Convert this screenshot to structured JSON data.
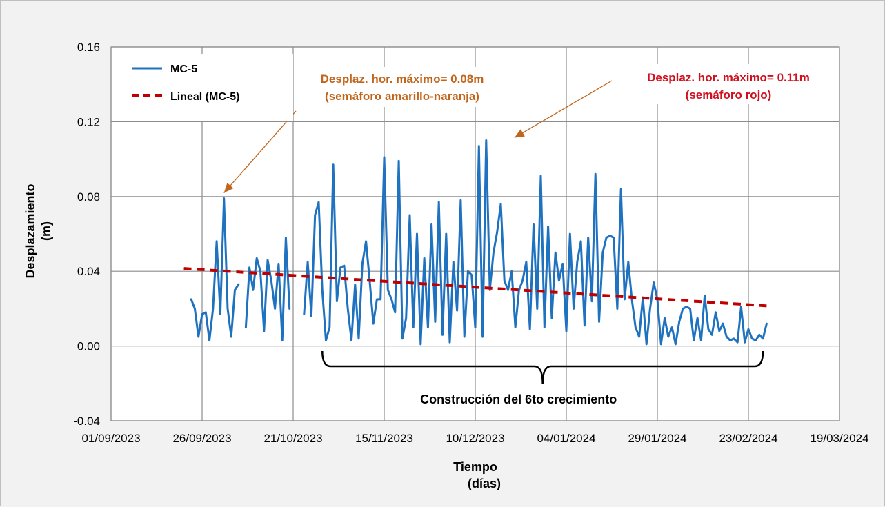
{
  "chart_data": {
    "type": "line",
    "xlabel": "Tiempo",
    "xlabel_sub": "(días)",
    "ylabel": "Desplazamiento",
    "ylabel_sub": "(m)",
    "ylim": [
      -0.04,
      0.16
    ],
    "yticks": [
      -0.04,
      0.0,
      0.04,
      0.08,
      0.12,
      0.16
    ],
    "ytick_labels": [
      "-0.04",
      "0.00",
      "0.04",
      "0.08",
      "0.12",
      "0.16"
    ],
    "xlim_days": [
      0,
      200
    ],
    "xticks_days": [
      0,
      25,
      50,
      75,
      100,
      125,
      150,
      175,
      200
    ],
    "xtick_labels": [
      "01/09/2023",
      "26/09/2023",
      "21/10/2023",
      "15/11/2023",
      "10/12/2023",
      "04/01/2024",
      "29/01/2024",
      "23/02/2024",
      "19/03/2024"
    ],
    "legend": [
      {
        "name": "MC-5",
        "style": "solid",
        "color": "#1f72c0"
      },
      {
        "name": "Lineal (MC-5)",
        "style": "dashed",
        "color": "#c00000"
      }
    ],
    "series": [
      {
        "name": "MC-5",
        "color": "#1f72c0",
        "segments": [
          {
            "x": [
              22,
              23,
              24,
              25,
              26,
              27,
              28,
              29,
              30,
              31,
              32,
              33,
              34,
              35
            ],
            "y": [
              0.025,
              0.02,
              0.005,
              0.017,
              0.018,
              0.003,
              0.02,
              0.056,
              0.017,
              0.079,
              0.02,
              0.005,
              0.03,
              0.033
            ]
          },
          {
            "x": [
              37,
              38,
              39,
              40,
              41,
              42,
              43,
              44,
              45,
              46,
              47,
              48,
              49
            ],
            "y": [
              0.01,
              0.042,
              0.03,
              0.047,
              0.04,
              0.008,
              0.046,
              0.035,
              0.02,
              0.044,
              0.003,
              0.058,
              0.02
            ]
          },
          {
            "x": [
              53,
              54,
              55,
              56,
              57,
              58,
              59,
              60,
              61,
              62,
              63,
              64,
              65,
              66,
              67,
              68,
              69,
              70,
              71,
              72,
              73,
              74,
              75,
              76,
              77,
              78,
              79,
              80,
              81,
              82,
              83,
              84,
              85,
              86,
              87,
              88,
              89,
              90,
              91,
              92,
              93,
              94,
              95,
              96,
              97,
              98,
              99,
              100,
              101,
              102,
              103,
              104,
              105,
              106,
              107,
              108,
              109,
              110,
              111,
              112,
              113,
              114,
              115,
              116,
              117,
              118,
              119,
              120,
              121,
              122,
              123,
              124,
              125,
              126,
              127,
              128,
              129,
              130,
              131,
              132,
              133,
              134,
              135,
              136,
              137,
              138,
              139,
              140,
              141,
              142,
              143,
              144,
              145,
              146,
              147,
              148,
              149,
              150,
              151,
              152,
              153,
              154,
              155,
              156,
              157,
              158,
              159,
              160,
              161,
              162,
              163,
              164,
              165,
              166,
              167,
              168,
              169,
              170,
              171,
              172,
              173,
              174,
              175,
              176,
              177,
              178,
              179,
              180
            ],
            "y": [
              0.017,
              0.045,
              0.016,
              0.07,
              0.077,
              0.03,
              0.003,
              0.01,
              0.097,
              0.024,
              0.042,
              0.043,
              0.02,
              0.003,
              0.033,
              0.004,
              0.044,
              0.056,
              0.035,
              0.012,
              0.025,
              0.025,
              0.101,
              0.03,
              0.025,
              0.018,
              0.099,
              0.004,
              0.015,
              0.07,
              0.01,
              0.06,
              0.001,
              0.047,
              0.01,
              0.065,
              0.013,
              0.077,
              0.006,
              0.06,
              0.002,
              0.045,
              0.019,
              0.078,
              0.005,
              0.04,
              0.038,
              0.01,
              0.107,
              0.005,
              0.11,
              0.03,
              0.05,
              0.061,
              0.076,
              0.035,
              0.03,
              0.04,
              0.01,
              0.03,
              0.035,
              0.045,
              0.009,
              0.065,
              0.02,
              0.091,
              0.01,
              0.064,
              0.015,
              0.05,
              0.035,
              0.044,
              0.008,
              0.06,
              0.02,
              0.045,
              0.056,
              0.011,
              0.058,
              0.024,
              0.092,
              0.013,
              0.05,
              0.058,
              0.059,
              0.058,
              0.02,
              0.084,
              0.025,
              0.045,
              0.025,
              0.01,
              0.005,
              0.026,
              0.001,
              0.02,
              0.034,
              0.025,
              0.001,
              0.015,
              0.005,
              0.01,
              0.001,
              0.013,
              0.02,
              0.021,
              0.02,
              0.003,
              0.015,
              0.003,
              0.027,
              0.009,
              0.006,
              0.018,
              0.008,
              0.012,
              0.005,
              0.003,
              0.004,
              0.002,
              0.021,
              0.002,
              0.009,
              0.004,
              0.003,
              0.006,
              0.004,
              0.012
            ]
          }
        ]
      },
      {
        "name": "Lineal (MC-5)",
        "color": "#c00000",
        "style": "dashed",
        "x": [
          20,
          180
        ],
        "y": [
          0.0415,
          0.0215
        ]
      }
    ],
    "annotations": [
      {
        "id": "max1",
        "line1": "Desplaz. hor. máximo= 0.08m",
        "line2": "(semáforo amarillo-naranja)",
        "color": "#c0651b",
        "point_day": 31,
        "point_y": 0.079
      },
      {
        "id": "max2",
        "line1": "Desplaz. hor. máximo= 0.11m",
        "line2": "(semáforo rojo)",
        "color": "#d0101e",
        "point_day": 110,
        "point_y": 0.11
      }
    ],
    "bracket": {
      "label": "Construcción del 6to crecimiento",
      "start_day": 58,
      "end_day": 179
    }
  }
}
